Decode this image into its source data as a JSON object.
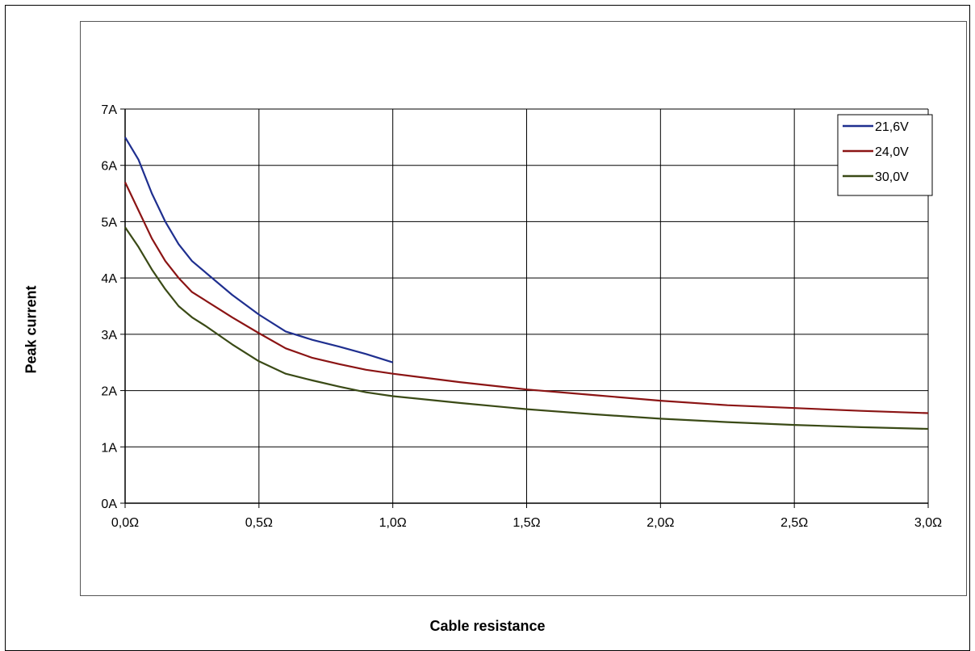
{
  "chart_data": {
    "type": "line",
    "title": "",
    "xlabel": "Cable resistance",
    "ylabel": "Peak current",
    "xlim": [
      0,
      3
    ],
    "ylim": [
      0,
      7
    ],
    "grid": true,
    "legend_position": "top-right",
    "x_ticks": [
      "0,0Ω",
      "0,5Ω",
      "1,0Ω",
      "1,5Ω",
      "2,0Ω",
      "2,5Ω",
      "3,0Ω"
    ],
    "y_ticks": [
      "0A",
      "1A",
      "2A",
      "3A",
      "4A",
      "5A",
      "6A",
      "7A"
    ],
    "series": [
      {
        "name": "21,6V",
        "color": "#1f2f8f",
        "x": [
          0,
          0.05,
          0.1,
          0.15,
          0.2,
          0.25,
          0.3,
          0.4,
          0.5,
          0.6,
          0.7,
          0.8,
          0.9,
          1.0
        ],
        "y": [
          6.5,
          6.1,
          5.5,
          5.0,
          4.6,
          4.3,
          4.1,
          3.7,
          3.35,
          3.05,
          2.9,
          2.78,
          2.65,
          2.5
        ]
      },
      {
        "name": "24,0V",
        "color": "#8b1414",
        "x": [
          0,
          0.05,
          0.1,
          0.15,
          0.2,
          0.25,
          0.3,
          0.4,
          0.5,
          0.6,
          0.7,
          0.8,
          0.9,
          1.0,
          1.25,
          1.5,
          1.75,
          2.0,
          2.25,
          2.5,
          2.75,
          3.0
        ],
        "y": [
          5.7,
          5.2,
          4.7,
          4.3,
          4.0,
          3.75,
          3.6,
          3.3,
          3.02,
          2.75,
          2.58,
          2.47,
          2.37,
          2.3,
          2.15,
          2.02,
          1.92,
          1.82,
          1.74,
          1.69,
          1.64,
          1.6
        ]
      },
      {
        "name": "30,0V",
        "color": "#3a4a16",
        "x": [
          0,
          0.05,
          0.1,
          0.15,
          0.2,
          0.25,
          0.3,
          0.4,
          0.5,
          0.6,
          0.7,
          0.8,
          0.9,
          1.0,
          1.25,
          1.5,
          1.75,
          2.0,
          2.25,
          2.5,
          2.75,
          3.0
        ],
        "y": [
          4.9,
          4.55,
          4.15,
          3.8,
          3.5,
          3.3,
          3.15,
          2.82,
          2.52,
          2.3,
          2.18,
          2.07,
          1.97,
          1.9,
          1.78,
          1.67,
          1.58,
          1.5,
          1.44,
          1.39,
          1.35,
          1.32
        ]
      }
    ]
  }
}
